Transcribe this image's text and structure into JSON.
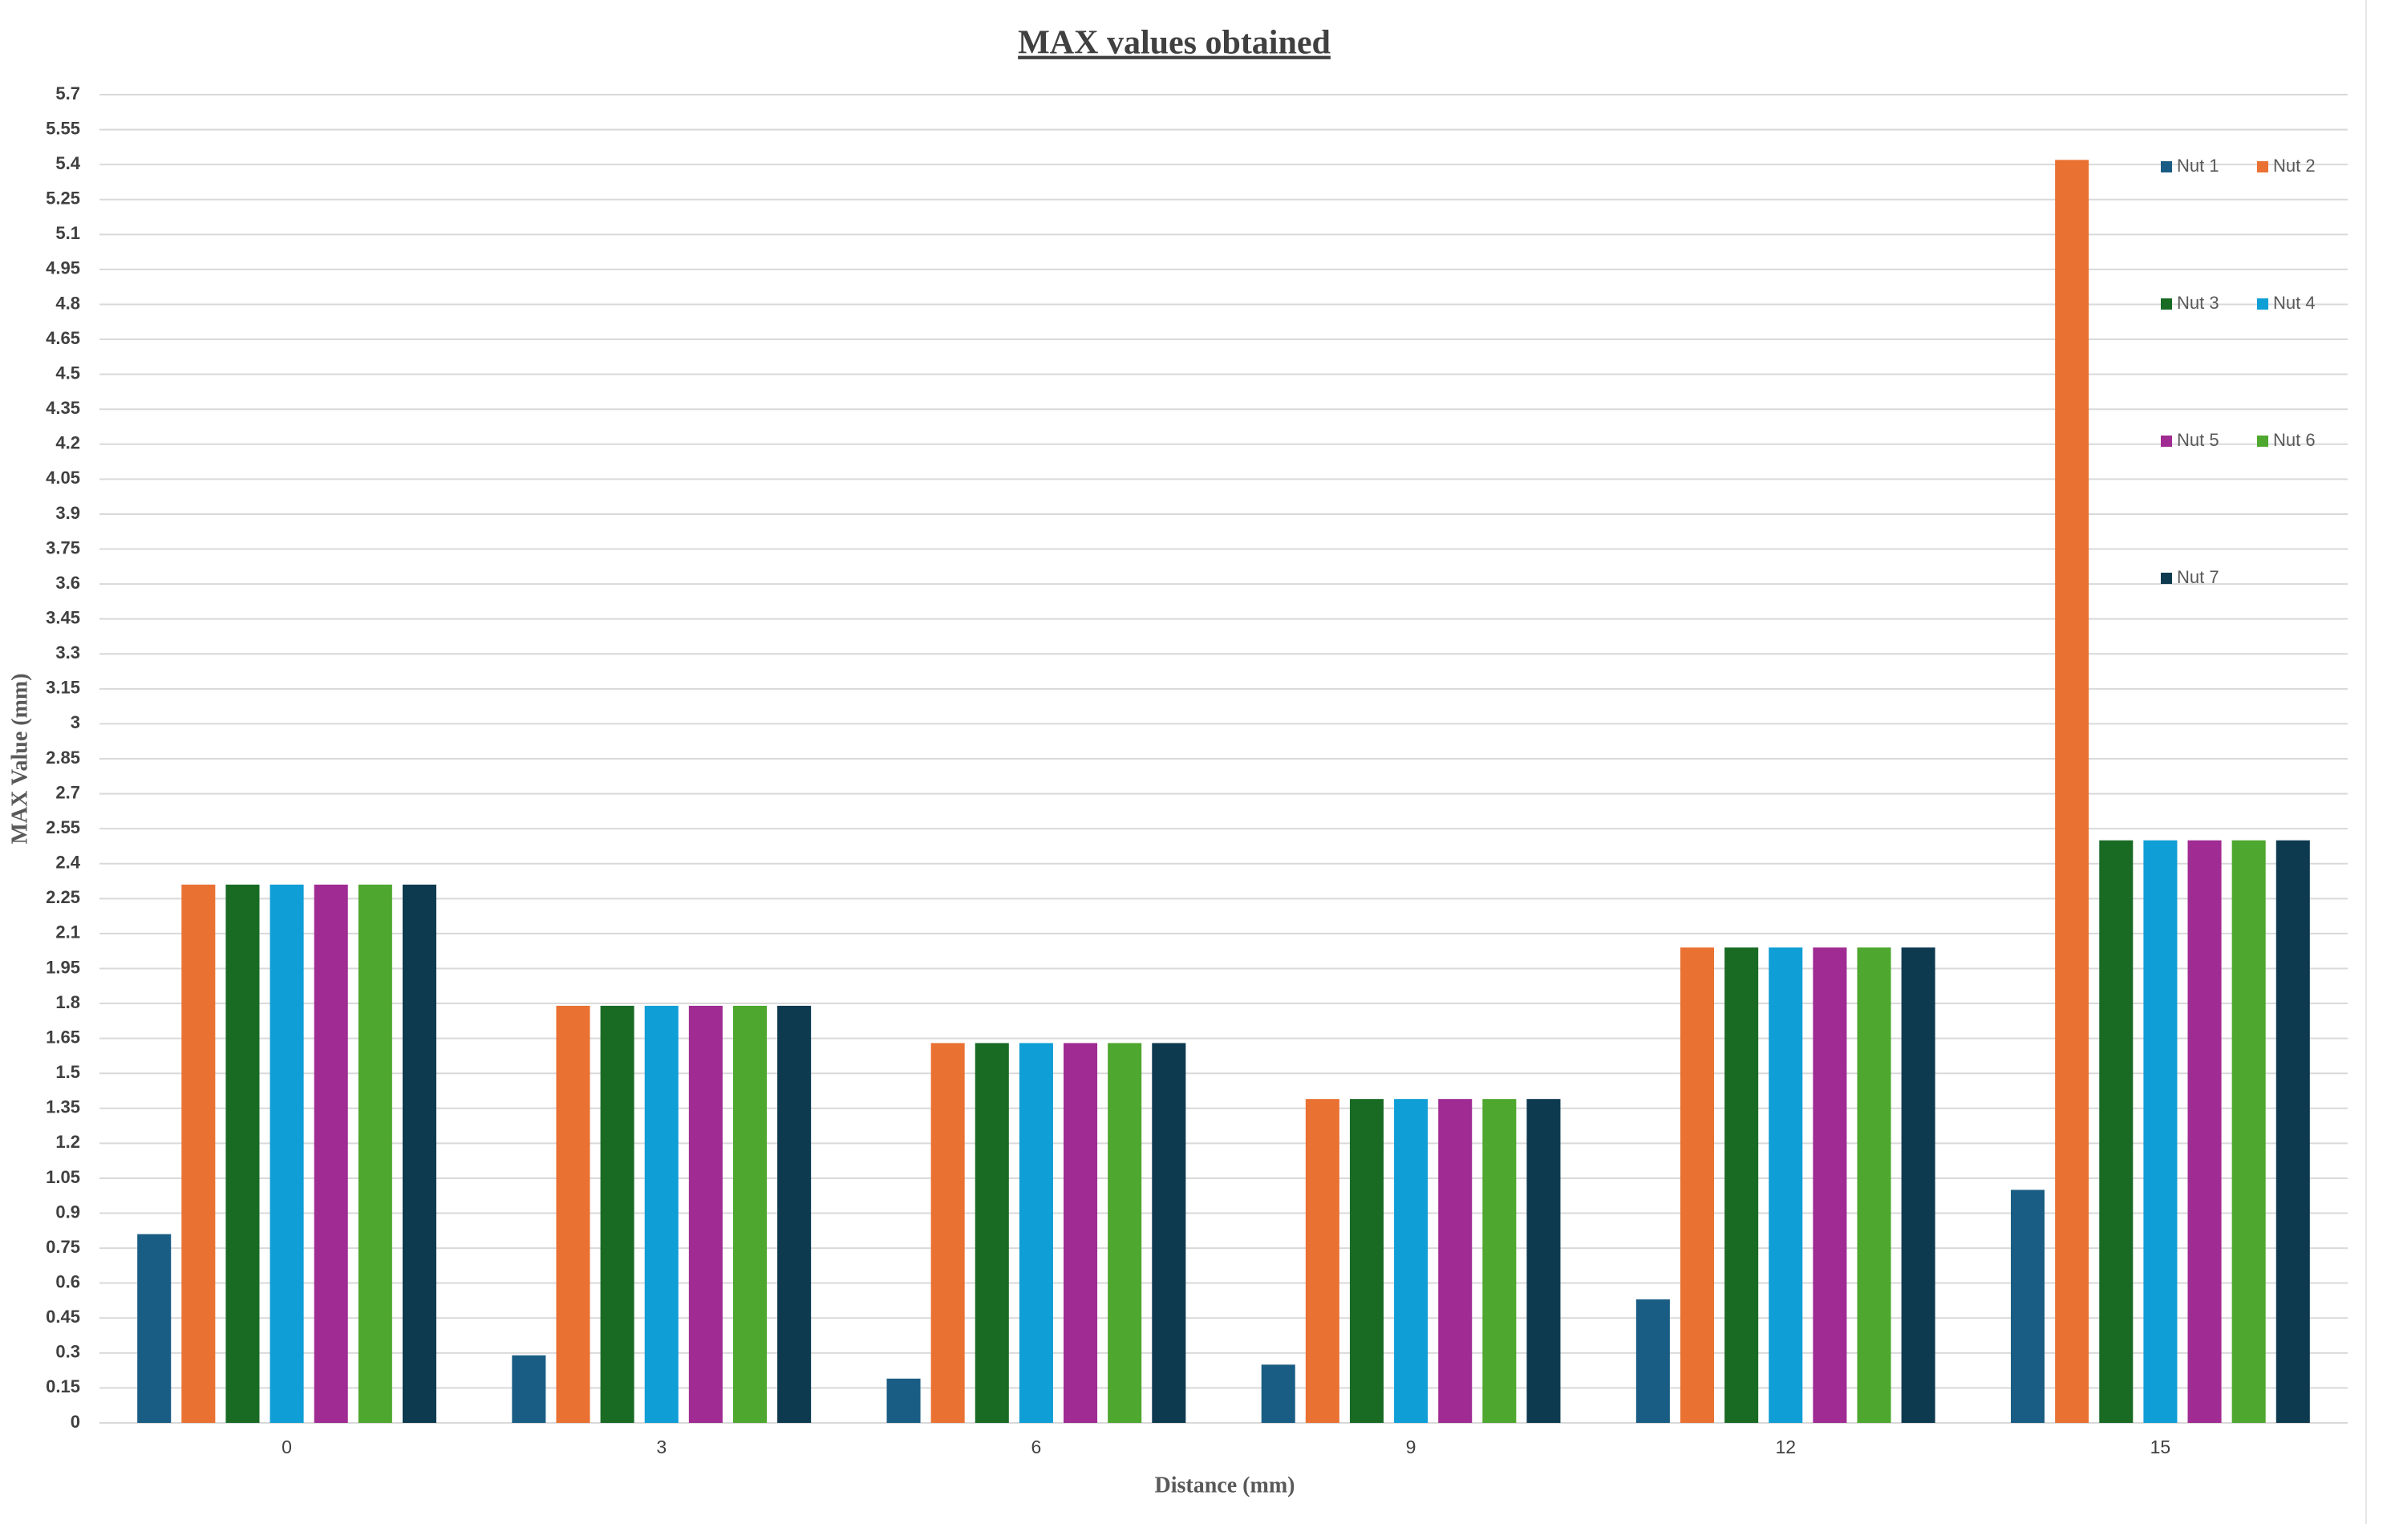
{
  "chart_data": {
    "type": "bar",
    "title": "MAX values obtained",
    "x_label": "Distance (mm)",
    "y_label": "MAX Value (mm)",
    "categories": [
      "0",
      "3",
      "6",
      "9",
      "12",
      "15"
    ],
    "series": [
      {
        "name": "Nut 1",
        "color": "#1a5d84",
        "values": [
          0.81,
          0.29,
          0.19,
          0.25,
          0.53,
          1.0
        ]
      },
      {
        "name": "Nut 2",
        "color": "#e97132",
        "values": [
          2.31,
          1.79,
          1.63,
          1.39,
          2.04,
          5.42
        ]
      },
      {
        "name": "Nut 3",
        "color": "#196b24",
        "values": [
          2.31,
          1.79,
          1.63,
          1.39,
          2.04,
          2.5
        ]
      },
      {
        "name": "Nut 4",
        "color": "#0f9ed5",
        "values": [
          2.31,
          1.79,
          1.63,
          1.39,
          2.04,
          2.5
        ]
      },
      {
        "name": "Nut 5",
        "color": "#a02b93",
        "values": [
          2.31,
          1.79,
          1.63,
          1.39,
          2.04,
          2.5
        ]
      },
      {
        "name": "Nut 6",
        "color": "#4ea72e",
        "values": [
          2.31,
          1.79,
          1.63,
          1.39,
          2.04,
          2.5
        ]
      },
      {
        "name": "Nut 7",
        "color": "#0e3a50",
        "values": [
          2.31,
          1.79,
          1.63,
          1.39,
          2.04,
          2.5
        ]
      }
    ],
    "ylim": [
      0,
      5.7
    ],
    "yticks": [
      0,
      0.15,
      0.3,
      0.45,
      0.6,
      0.75,
      0.9,
      1.05,
      1.2,
      1.35,
      1.5,
      1.65,
      1.8,
      1.95,
      2.1,
      2.25,
      2.4,
      2.55,
      2.7,
      2.85,
      3,
      3.15,
      3.3,
      3.45,
      3.6,
      3.75,
      3.9,
      4.05,
      4.2,
      4.35,
      4.5,
      4.65,
      4.8,
      4.95,
      5.1,
      5.25,
      5.4,
      5.55,
      5.7
    ],
    "grid": true,
    "legend": "upper right"
  }
}
